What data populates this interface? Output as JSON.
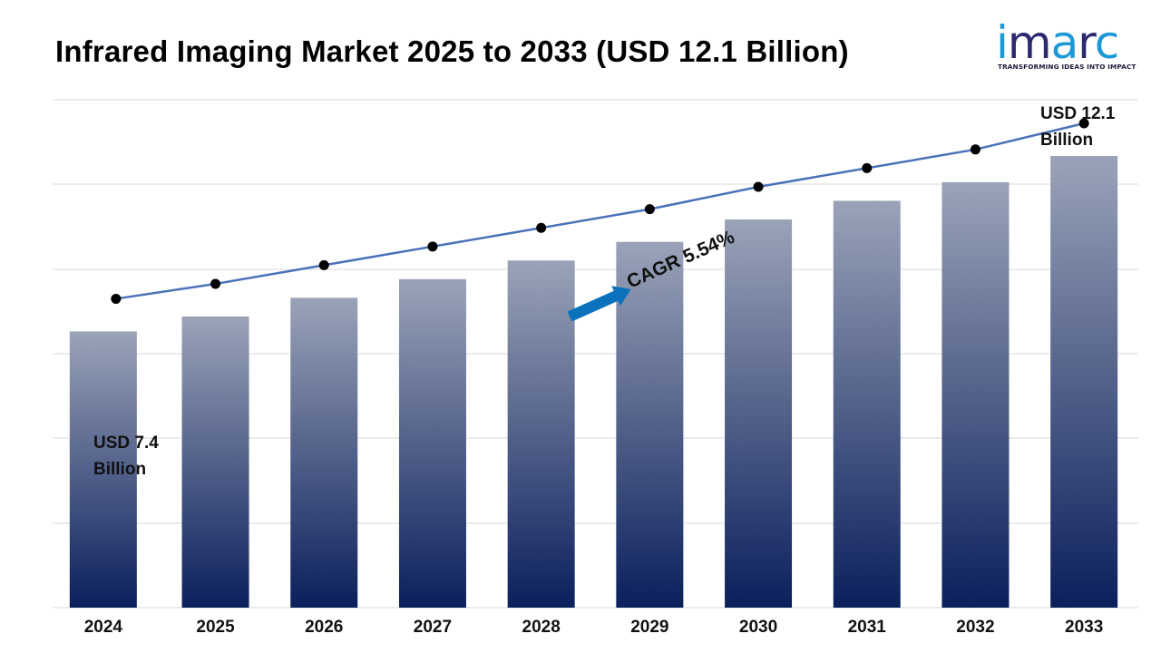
{
  "title": "Infrared Imaging Market 2025 to 2033 (USD 12.1 Billion)",
  "logo": {
    "text": "imarc",
    "tagline": "TRANSFORMING IDEAS INTO IMPACT",
    "colors": {
      "primary": "#1b98d5",
      "secondary": "#2c2a6f"
    }
  },
  "annotations": {
    "start_line1": "USD 7.4",
    "start_line2": "Billion",
    "end_line1": "USD 12.1",
    "end_line2": "Billion",
    "cagr": "CAGR 5.54%"
  },
  "chart_data": {
    "type": "bar",
    "categories": [
      "2024",
      "2025",
      "2026",
      "2027",
      "2028",
      "2029",
      "2030",
      "2031",
      "2032",
      "2033"
    ],
    "values": [
      7.4,
      7.8,
      8.3,
      8.8,
      9.3,
      9.8,
      10.4,
      10.9,
      11.4,
      12.1
    ],
    "overlay_line": true,
    "grid": true,
    "colors": {
      "bar_top": "#9aa3b8",
      "bar_bottom": "#0b1f5c",
      "line": "#4a72b8",
      "marker": "#000000",
      "arrow": "#0a72bd"
    }
  }
}
